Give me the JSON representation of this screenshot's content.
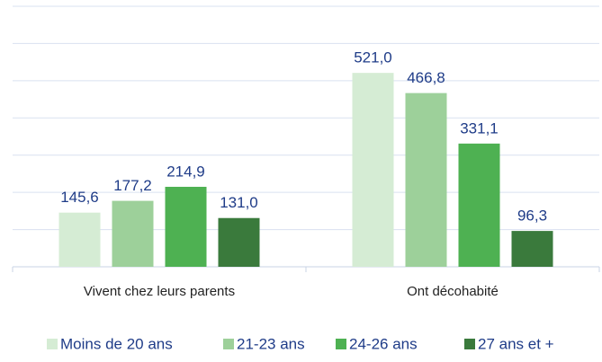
{
  "chart_data": {
    "type": "bar",
    "categories": [
      "Vivent chez leurs parents",
      "Ont décohabité"
    ],
    "series": [
      {
        "name": "Moins de 20 ans",
        "color": "#d5ecd4",
        "values": [
          145.6,
          521.0
        ],
        "value_labels": [
          "145,6",
          "521,0"
        ]
      },
      {
        "name": "21-23 ans",
        "color": "#9dd09a",
        "values": [
          177.2,
          466.8
        ],
        "value_labels": [
          "177,2",
          "466,8"
        ]
      },
      {
        "name": "24-26 ans",
        "color": "#4eb152",
        "values": [
          214.9,
          331.1
        ],
        "value_labels": [
          "214,9",
          "331,1"
        ]
      },
      {
        "name": "27 ans et +",
        "color": "#3a7a3c",
        "values": [
          131.0,
          96.3
        ],
        "value_labels": [
          "131,0",
          "96,3"
        ]
      }
    ],
    "ylim": [
      0,
      700
    ],
    "yticks": [
      0,
      100,
      200,
      300,
      400,
      500,
      600,
      700
    ],
    "grid": true,
    "legend": "bottom"
  }
}
